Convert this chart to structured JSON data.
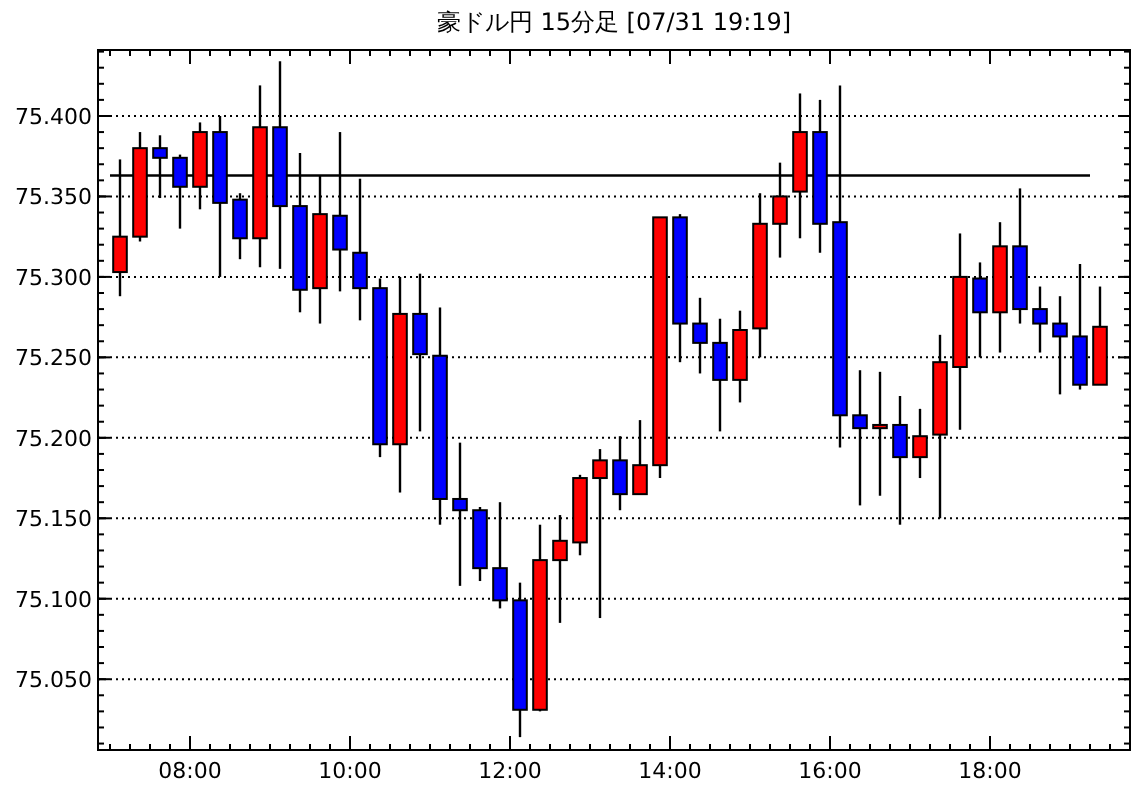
{
  "chart_data": {
    "type": "candlestick",
    "title": "豪ドル円 15分足 [07/31 19:19]",
    "x": [
      7.125,
      7.375,
      7.625,
      7.875,
      8.125,
      8.375,
      8.625,
      8.875,
      9.125,
      9.375,
      9.625,
      9.875,
      10.125,
      10.375,
      10.625,
      10.875,
      11.125,
      11.375,
      11.625,
      11.875,
      12.125,
      12.375,
      12.625,
      12.875,
      13.125,
      13.375,
      13.625,
      13.875,
      14.125,
      14.375,
      14.625,
      14.875,
      15.125,
      15.375,
      15.625,
      15.875,
      16.125,
      16.375,
      16.625,
      16.875,
      17.125,
      17.375,
      17.625,
      17.875,
      18.125,
      18.375,
      18.625,
      18.875,
      19.125,
      19.375
    ],
    "ohlc": [
      [
        75.303,
        75.373,
        75.288,
        75.325
      ],
      [
        75.325,
        75.39,
        75.322,
        75.38
      ],
      [
        75.38,
        75.388,
        75.349,
        75.374
      ],
      [
        75.374,
        75.376,
        75.33,
        75.356
      ],
      [
        75.356,
        75.396,
        75.342,
        75.39
      ],
      [
        75.39,
        75.4,
        75.3,
        75.346
      ],
      [
        75.348,
        75.352,
        75.311,
        75.324
      ],
      [
        75.324,
        75.419,
        75.306,
        75.393
      ],
      [
        75.393,
        75.434,
        75.305,
        75.344
      ],
      [
        75.344,
        75.377,
        75.278,
        75.292
      ],
      [
        75.293,
        75.363,
        75.271,
        75.339
      ],
      [
        75.338,
        75.39,
        75.291,
        75.317
      ],
      [
        75.315,
        75.361,
        75.273,
        75.293
      ],
      [
        75.293,
        75.299,
        75.188,
        75.196
      ],
      [
        75.196,
        75.3,
        75.166,
        75.277
      ],
      [
        75.277,
        75.302,
        75.204,
        75.252
      ],
      [
        75.251,
        75.281,
        75.146,
        75.162
      ],
      [
        75.162,
        75.197,
        75.108,
        75.155
      ],
      [
        75.155,
        75.157,
        75.111,
        75.119
      ],
      [
        75.119,
        75.16,
        75.094,
        75.099
      ],
      [
        75.099,
        75.11,
        75.014,
        75.031
      ],
      [
        75.031,
        75.146,
        75.03,
        75.124
      ],
      [
        75.124,
        75.152,
        75.085,
        75.136
      ],
      [
        75.135,
        75.177,
        75.127,
        75.175
      ],
      [
        75.175,
        75.193,
        75.088,
        75.186
      ],
      [
        75.186,
        75.201,
        75.155,
        75.165
      ],
      [
        75.165,
        75.211,
        75.165,
        75.183
      ],
      [
        75.183,
        75.337,
        75.175,
        75.337
      ],
      [
        75.337,
        75.339,
        75.247,
        75.271
      ],
      [
        75.271,
        75.287,
        75.24,
        75.259
      ],
      [
        75.259,
        75.274,
        75.204,
        75.236
      ],
      [
        75.236,
        75.279,
        75.222,
        75.267
      ],
      [
        75.268,
        75.352,
        75.25,
        75.333
      ],
      [
        75.333,
        75.371,
        75.312,
        75.35
      ],
      [
        75.353,
        75.414,
        75.324,
        75.39
      ],
      [
        75.39,
        75.41,
        75.315,
        75.333
      ],
      [
        75.334,
        75.419,
        75.194,
        75.214
      ],
      [
        75.214,
        75.242,
        75.158,
        75.206
      ],
      [
        75.206,
        75.241,
        75.164,
        75.208
      ],
      [
        75.208,
        75.226,
        75.146,
        75.188
      ],
      [
        75.188,
        75.218,
        75.175,
        75.201
      ],
      [
        75.202,
        75.264,
        75.15,
        75.247
      ],
      [
        75.244,
        75.327,
        75.205,
        75.3
      ],
      [
        75.299,
        75.309,
        75.25,
        75.278
      ],
      [
        75.278,
        75.334,
        75.253,
        75.319
      ],
      [
        75.319,
        75.355,
        75.271,
        75.28
      ],
      [
        75.28,
        75.294,
        75.253,
        75.271
      ],
      [
        75.271,
        75.288,
        75.227,
        75.263
      ],
      [
        75.263,
        75.308,
        75.23,
        75.233
      ],
      [
        75.233,
        75.294,
        75.233,
        75.269
      ]
    ],
    "colors": [
      "#ff0000",
      "#ff0000",
      "#0000ff",
      "#0000ff",
      "#ff0000",
      "#0000ff",
      "#0000ff",
      "#ff0000",
      "#0000ff",
      "#0000ff",
      "#ff0000",
      "#0000ff",
      "#0000ff",
      "#0000ff",
      "#ff0000",
      "#0000ff",
      "#0000ff",
      "#0000ff",
      "#0000ff",
      "#0000ff",
      "#0000ff",
      "#ff0000",
      "#ff0000",
      "#ff0000",
      "#ff0000",
      "#0000ff",
      "#ff0000",
      "#ff0000",
      "#0000ff",
      "#0000ff",
      "#0000ff",
      "#ff0000",
      "#ff0000",
      "#ff0000",
      "#ff0000",
      "#0000ff",
      "#0000ff",
      "#0000ff",
      "#ff0000",
      "#0000ff",
      "#ff0000",
      "#ff0000",
      "#ff0000",
      "#0000ff",
      "#ff0000",
      "#0000ff",
      "#0000ff",
      "#0000ff",
      "#0000ff",
      "#ff0000"
    ],
    "xlim": [
      6.85,
      19.75
    ],
    "ylim": [
      75.006,
      75.441
    ],
    "xticks": [
      {
        "value": 8,
        "label": "08:00"
      },
      {
        "value": 10,
        "label": "10:00"
      },
      {
        "value": 12,
        "label": "12:00"
      },
      {
        "value": 14,
        "label": "14:00"
      },
      {
        "value": 16,
        "label": "16:00"
      },
      {
        "value": 18,
        "label": "18:00"
      }
    ],
    "yticks": [
      {
        "value": 75.05,
        "label": "75.050"
      },
      {
        "value": 75.1,
        "label": "75.100"
      },
      {
        "value": 75.15,
        "label": "75.150"
      },
      {
        "value": 75.2,
        "label": "75.200"
      },
      {
        "value": 75.25,
        "label": "75.250"
      },
      {
        "value": 75.3,
        "label": "75.300"
      },
      {
        "value": 75.35,
        "label": "75.350"
      },
      {
        "value": 75.4,
        "label": "75.400"
      }
    ],
    "ref_lines": [
      {
        "axis": "y",
        "value": 75.363,
        "color": "#000000"
      }
    ],
    "grid": "y"
  }
}
